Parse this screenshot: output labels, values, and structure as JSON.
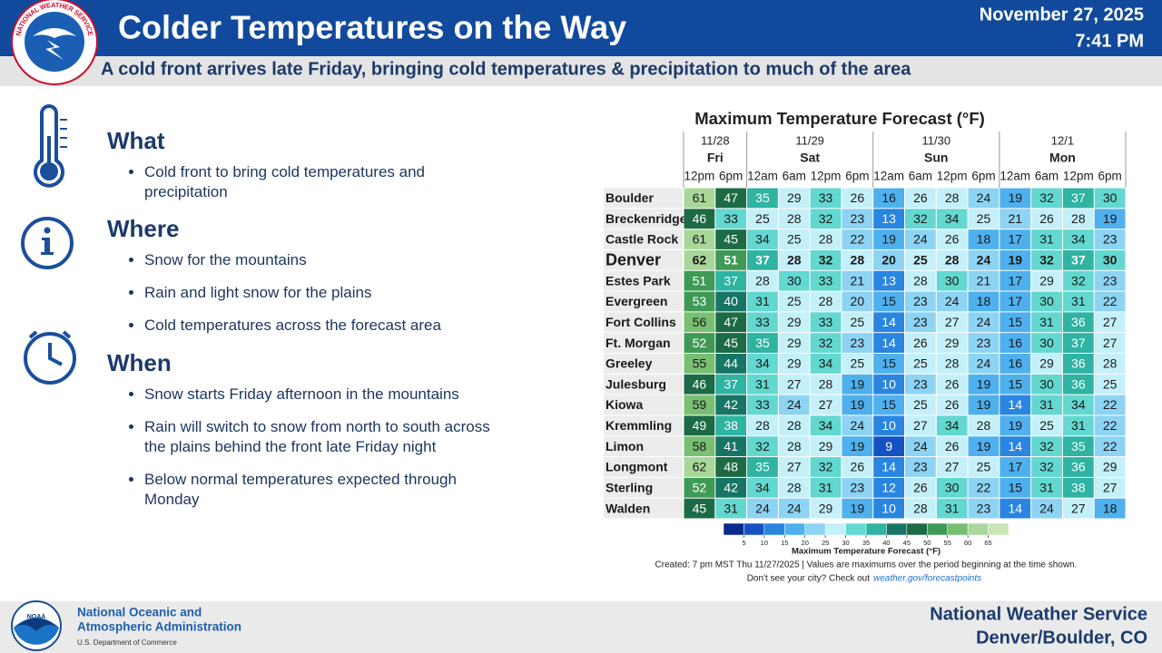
{
  "header": {
    "title": "Colder Temperatures on the Way",
    "date": "November 27, 2025",
    "time": "7:41 PM",
    "subtitle": "A cold front arrives late Friday, bringing cold temperatures & precipitation to much of the area",
    "logo_text": "NATIONAL WEATHER SERVICE"
  },
  "sections": [
    {
      "heading": "What",
      "bullets": [
        "Cold front to bring cold temperatures and precipitation"
      ]
    },
    {
      "heading": "Where",
      "bullets": [
        "Snow for the mountains",
        "Rain and light snow for the plains",
        "Cold temperatures across the forecast area"
      ]
    },
    {
      "heading": "When",
      "bullets": [
        "Snow starts Friday afternoon in the mountains",
        "Rain will switch to snow from north to south across the plains behind the front late Friday night",
        "Below normal temperatures expected through Monday"
      ]
    }
  ],
  "forecast": {
    "title": "Maximum Temperature Forecast (°F)",
    "days": [
      {
        "date": "11/28",
        "day": "Fri",
        "times": [
          "12pm",
          "6pm"
        ]
      },
      {
        "date": "11/29",
        "day": "Sat",
        "times": [
          "12am",
          "6am",
          "12pm",
          "6pm"
        ]
      },
      {
        "date": "11/30",
        "day": "Sun",
        "times": [
          "12am",
          "6am",
          "12pm",
          "6pm"
        ]
      },
      {
        "date": "12/1",
        "day": "Mon",
        "times": [
          "12am",
          "6am",
          "12pm",
          "6pm"
        ]
      }
    ],
    "rows": [
      {
        "city": "Boulder",
        "values": [
          61,
          47,
          35,
          29,
          33,
          26,
          16,
          26,
          28,
          24,
          19,
          32,
          37,
          30
        ]
      },
      {
        "city": "Breckenridge",
        "values": [
          46,
          33,
          25,
          28,
          32,
          23,
          13,
          32,
          34,
          25,
          21,
          26,
          28,
          19
        ]
      },
      {
        "city": "Castle Rock",
        "values": [
          61,
          45,
          34,
          25,
          28,
          22,
          19,
          24,
          26,
          18,
          17,
          31,
          34,
          23
        ]
      },
      {
        "city": "Denver",
        "values": [
          62,
          51,
          37,
          28,
          32,
          28,
          20,
          25,
          28,
          24,
          19,
          32,
          37,
          30
        ]
      },
      {
        "city": "Estes Park",
        "values": [
          51,
          37,
          28,
          30,
          33,
          21,
          13,
          28,
          30,
          21,
          17,
          29,
          32,
          23
        ]
      },
      {
        "city": "Evergreen",
        "values": [
          53,
          40,
          31,
          25,
          28,
          20,
          15,
          23,
          24,
          18,
          17,
          30,
          31,
          22
        ]
      },
      {
        "city": "Fort Collins",
        "values": [
          56,
          47,
          33,
          29,
          33,
          25,
          14,
          23,
          27,
          24,
          15,
          31,
          36,
          27
        ]
      },
      {
        "city": "Ft. Morgan",
        "values": [
          52,
          45,
          35,
          29,
          32,
          23,
          14,
          26,
          29,
          23,
          16,
          30,
          37,
          27
        ]
      },
      {
        "city": "Greeley",
        "values": [
          55,
          44,
          34,
          29,
          34,
          25,
          15,
          25,
          28,
          24,
          16,
          29,
          36,
          28
        ]
      },
      {
        "city": "Julesburg",
        "values": [
          46,
          37,
          31,
          27,
          28,
          19,
          10,
          23,
          26,
          19,
          15,
          30,
          36,
          25
        ]
      },
      {
        "city": "Kiowa",
        "values": [
          59,
          42,
          33,
          24,
          27,
          19,
          15,
          25,
          26,
          19,
          14,
          31,
          34,
          22
        ]
      },
      {
        "city": "Kremmling",
        "values": [
          49,
          38,
          28,
          28,
          34,
          24,
          10,
          27,
          34,
          28,
          19,
          25,
          31,
          22
        ]
      },
      {
        "city": "Limon",
        "values": [
          58,
          41,
          32,
          28,
          29,
          19,
          9,
          24,
          26,
          19,
          14,
          32,
          35,
          22
        ]
      },
      {
        "city": "Longmont",
        "values": [
          62,
          48,
          35,
          27,
          32,
          26,
          14,
          23,
          27,
          25,
          17,
          32,
          36,
          29
        ]
      },
      {
        "city": "Sterling",
        "values": [
          52,
          42,
          34,
          28,
          31,
          23,
          12,
          26,
          30,
          22,
          15,
          31,
          38,
          27
        ]
      },
      {
        "city": "Walden",
        "values": [
          45,
          31,
          24,
          24,
          29,
          19,
          10,
          28,
          31,
          23,
          14,
          24,
          27,
          18
        ]
      }
    ],
    "scale": {
      "ticks": [
        5,
        10,
        15,
        20,
        25,
        30,
        35,
        40,
        45,
        50,
        55,
        60,
        65
      ],
      "colors": [
        "#0b2a8f",
        "#1452c4",
        "#2a85e0",
        "#4fb0ee",
        "#8dd3f4",
        "#c4f0fa",
        "#63d8d0",
        "#2fb3a3",
        "#177565",
        "#1d6b44",
        "#3f9a55",
        "#78bf72",
        "#a9d79a",
        "#c8e6b5"
      ],
      "label": "Maximum Temperature Forecast (°F)"
    },
    "note": "Created: 7 pm MST Thu 11/27/2025  |  Values are maximums over the period beginning at the time shown.",
    "prompt": "Don't see your city? Check out",
    "link": "weather.gov/forecastpoints"
  },
  "footer": {
    "noaa_logo": "NOAA",
    "agency": [
      "National Oceanic and",
      "Atmospheric Administration"
    ],
    "department": "U.S. Department of Commerce",
    "office": [
      "National Weather Service",
      "Denver/Boulder, CO"
    ]
  }
}
